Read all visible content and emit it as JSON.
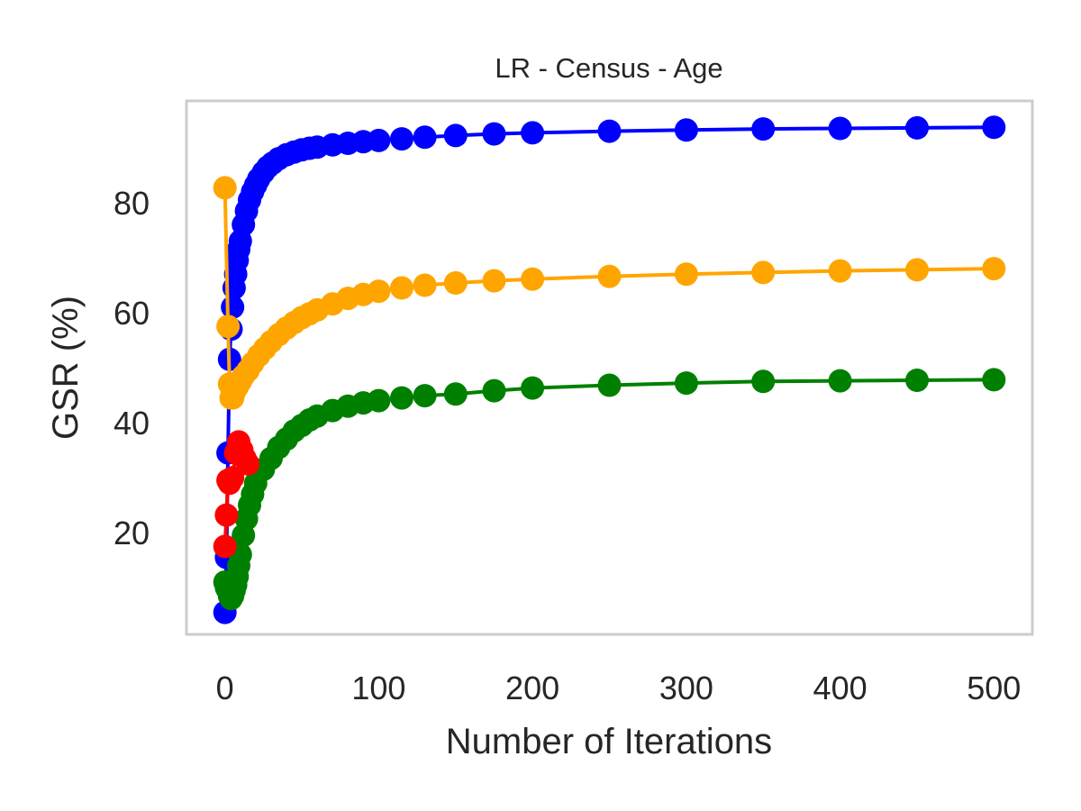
{
  "chart_data": {
    "type": "line",
    "title": "LR - Census - Age",
    "xlabel": "Number of Iterations",
    "ylabel": "GSR (%)",
    "xlim": [
      -25,
      525
    ],
    "ylim": [
      1.5,
      98.5
    ],
    "xticks": [
      0,
      100,
      200,
      300,
      400,
      500
    ],
    "xtick_labels": [
      "0",
      "100",
      "200",
      "300",
      "400",
      "500"
    ],
    "yticks": [
      20,
      40,
      60,
      80
    ],
    "ytick_labels": [
      "20",
      "40",
      "60",
      "80"
    ],
    "grid": false,
    "legend": null,
    "marker": "circle",
    "series": [
      {
        "color": "#0000ff",
        "x": [
          0,
          1,
          2,
          3,
          4,
          5,
          6,
          7,
          8,
          9,
          10,
          12,
          14,
          16,
          18,
          20,
          22,
          25,
          28,
          31,
          35,
          40,
          45,
          50,
          55,
          60,
          70,
          80,
          90,
          100,
          115,
          130,
          150,
          175,
          200,
          250,
          300,
          350,
          400,
          450,
          500
        ],
        "y": [
          5.5,
          15.5,
          34.5,
          51.5,
          57,
          61,
          64.5,
          67,
          69.5,
          71.5,
          73,
          76,
          78.5,
          80.5,
          82,
          83.2,
          84.3,
          85.5,
          86.5,
          87.2,
          88,
          88.7,
          89.2,
          89.6,
          89.9,
          90.1,
          90.5,
          90.8,
          91.1,
          91.3,
          91.6,
          91.9,
          92.2,
          92.5,
          92.7,
          93,
          93.2,
          93.4,
          93.5,
          93.6,
          93.7
        ]
      },
      {
        "color": "#ffa500",
        "x": [
          0,
          2,
          3,
          4,
          5,
          6,
          8,
          10,
          12,
          15,
          18,
          22,
          26,
          30,
          35,
          40,
          45,
          50,
          55,
          60,
          70,
          80,
          90,
          100,
          115,
          130,
          150,
          175,
          200,
          250,
          300,
          350,
          400,
          450,
          500
        ],
        "y": [
          82.7,
          57.5,
          47,
          44.5,
          44.5,
          45.5,
          46.5,
          47.5,
          48.5,
          49.5,
          50.8,
          52.2,
          53.5,
          54.7,
          56,
          57.2,
          58.2,
          59.1,
          59.8,
          60.5,
          61.6,
          62.6,
          63.3,
          63.9,
          64.5,
          65,
          65.4,
          65.8,
          66.1,
          66.6,
          67,
          67.3,
          67.6,
          67.8,
          68
        ]
      },
      {
        "color": "#008000",
        "x": [
          0,
          1,
          2,
          3,
          4,
          5,
          6,
          7,
          8,
          9,
          10,
          12,
          14,
          16,
          18,
          20,
          25,
          30,
          35,
          40,
          45,
          50,
          55,
          60,
          70,
          80,
          90,
          100,
          115,
          130,
          150,
          175,
          200,
          250,
          300,
          350,
          400,
          450,
          500
        ],
        "y": [
          11,
          10,
          9.5,
          8.5,
          8,
          8.5,
          9.5,
          10.5,
          12,
          14,
          16,
          19.5,
          22.5,
          25,
          27,
          29,
          31.5,
          33.5,
          35.5,
          37,
          38.5,
          39.5,
          40.5,
          41.2,
          42.2,
          43,
          43.6,
          44,
          44.5,
          44.9,
          45.2,
          45.8,
          46.3,
          46.8,
          47.2,
          47.5,
          47.6,
          47.7,
          47.8
        ]
      },
      {
        "color": "#ff0000",
        "x": [
          0,
          1,
          2,
          3,
          5,
          7,
          9,
          11,
          13,
          15
        ],
        "y": [
          17.5,
          23.2,
          29.5,
          29,
          30,
          34.5,
          36.5,
          35,
          33.5,
          32.5
        ]
      }
    ]
  }
}
